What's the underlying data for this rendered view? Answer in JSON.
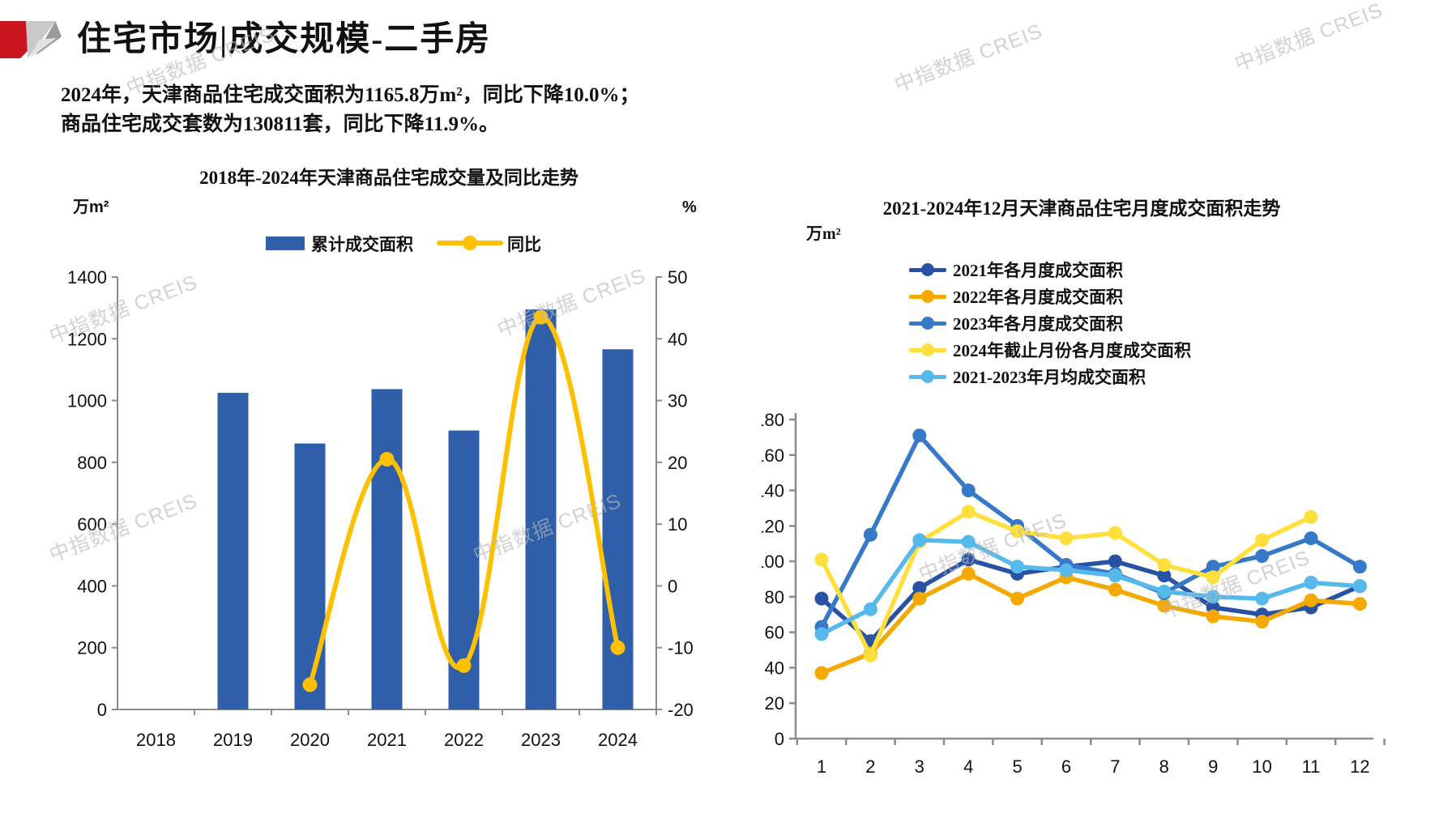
{
  "page": {
    "title": "住宅市场|成交规模-二手房",
    "summary_line1": "2024年，天津商品住宅成交面积为1165.8万m²，同比下降10.0%；",
    "summary_line2": "商品住宅成交套数为130811套，同比下降11.9%。",
    "watermark": "中指数据 CREIS"
  },
  "colors": {
    "bar_blue": "#2E5FA8",
    "yoy_gold": "#FFC000",
    "navy_2021": "#2853A4",
    "orange_2022": "#F5A800",
    "blue_2023": "#3579C8",
    "yellow_2024": "#FFDF3C",
    "lightblue_avg": "#55B9EC",
    "axis_gray": "#8C8C8C",
    "logo_red": "#C9161E"
  },
  "chart_data": [
    {
      "type": "bar",
      "title": "2018年-2024年天津商品住宅成交量及同比走势",
      "unit_left": "万m²",
      "unit_right": "%",
      "categories": [
        "2018",
        "2019",
        "2020",
        "2021",
        "2022",
        "2023",
        "2024"
      ],
      "series": [
        {
          "name": "累计成交面积",
          "kind": "bar",
          "axis": "left",
          "color": "#2E5FA8",
          "values": [
            null,
            1025,
            861,
            1037,
            903,
            1295,
            1166
          ]
        },
        {
          "name": "同比",
          "kind": "line",
          "axis": "right",
          "color": "#FFC000",
          "values": [
            null,
            null,
            -16.0,
            20.5,
            -12.9,
            43.5,
            -10.0
          ]
        }
      ],
      "ylim_left": [
        0,
        1400
      ],
      "ytick_left": 200,
      "ylim_right": [
        -20,
        50
      ],
      "ytick_right": 10,
      "grid": false,
      "legend_position": "top"
    },
    {
      "type": "line",
      "title": "2021-2024年12月天津商品住宅月度成交面积走势",
      "unit": "万m²",
      "x": [
        1,
        2,
        3,
        4,
        5,
        6,
        7,
        8,
        9,
        10,
        11,
        12
      ],
      "series": [
        {
          "name": "2021年各月度成交面积",
          "color": "#2853A4",
          "values": [
            79,
            55,
            85,
            101,
            93,
            97,
            100,
            92,
            74,
            70,
            74,
            86
          ]
        },
        {
          "name": "2022年各月度成交面积",
          "color": "#F5A800",
          "values": [
            37,
            48,
            79,
            93,
            79,
            91,
            84,
            75,
            69,
            66,
            78,
            76
          ]
        },
        {
          "name": "2023年各月度成交面积",
          "color": "#3579C8",
          "values": [
            63,
            115,
            171,
            140,
            120,
            98,
            93,
            82,
            97,
            103,
            113,
            97
          ]
        },
        {
          "name": "2024年截止月份各月度成交面积",
          "color": "#FFDF3C",
          "values": [
            101,
            47,
            111,
            128,
            117,
            113,
            116,
            98,
            91,
            112,
            125
          ]
        },
        {
          "name": "2021-2023年月均成交面积",
          "color": "#55B9EC",
          "values": [
            59,
            73,
            112,
            111,
            97,
            95,
            92,
            83,
            80,
            79,
            88,
            86
          ]
        }
      ],
      "ylim": [
        0,
        180
      ],
      "ytick": 20,
      "grid": false,
      "legend_position": "top-left"
    }
  ]
}
